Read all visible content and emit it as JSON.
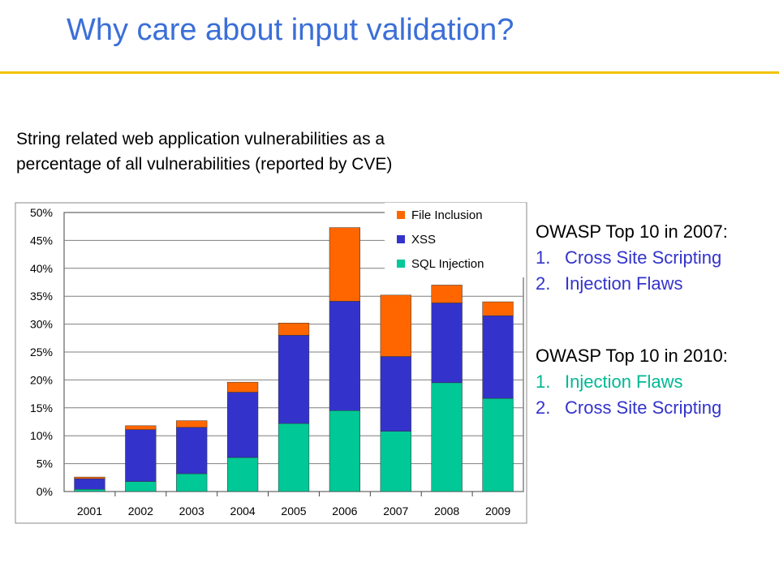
{
  "slide": {
    "title": "Why care about input validation?",
    "caption_line1": "String related web application vulnerabilities as a",
    "caption_line2": "percentage of all vulnerabilities (reported by CVE)"
  },
  "owasp": [
    {
      "heading": "OWASP Top 10 in 2007:",
      "items": [
        {
          "num": "1.",
          "label": "Cross Site Scripting",
          "color": "#3333cc"
        },
        {
          "num": "2.",
          "label": "Injection Flaws",
          "color": "#3333cc"
        }
      ]
    },
    {
      "heading": "OWASP Top 10 in 2010:",
      "items": [
        {
          "num": "1.",
          "label": "Injection Flaws",
          "color": "#00b894"
        },
        {
          "num": "2.",
          "label": "Cross Site Scripting",
          "color": "#3333cc"
        }
      ]
    }
  ],
  "chart_data": {
    "type": "bar",
    "stacked": true,
    "categories": [
      "2001",
      "2002",
      "2003",
      "2004",
      "2005",
      "2006",
      "2007",
      "2008",
      "2009"
    ],
    "series": [
      {
        "name": "SQL Injection",
        "color": "#00c896",
        "values": [
          0.4,
          1.8,
          3.2,
          6.1,
          12.2,
          14.5,
          10.8,
          19.5,
          16.7
        ]
      },
      {
        "name": "XSS",
        "color": "#3333cc",
        "values": [
          1.9,
          9.3,
          8.3,
          11.7,
          15.8,
          19.6,
          13.4,
          14.3,
          14.8
        ]
      },
      {
        "name": "File Inclusion",
        "color": "#ff6600",
        "values": [
          0.3,
          0.7,
          1.2,
          1.8,
          2.2,
          13.2,
          11.0,
          3.2,
          2.5
        ]
      }
    ],
    "legend_order": [
      "File Inclusion",
      "XSS",
      "SQL Injection"
    ],
    "legend_position": "top-right",
    "ylim": [
      0,
      50
    ],
    "yticks": [
      "0%",
      "5%",
      "10%",
      "15%",
      "20%",
      "25%",
      "30%",
      "35%",
      "40%",
      "45%",
      "50%"
    ],
    "grid": true,
    "xlabel": "",
    "ylabel": ""
  }
}
